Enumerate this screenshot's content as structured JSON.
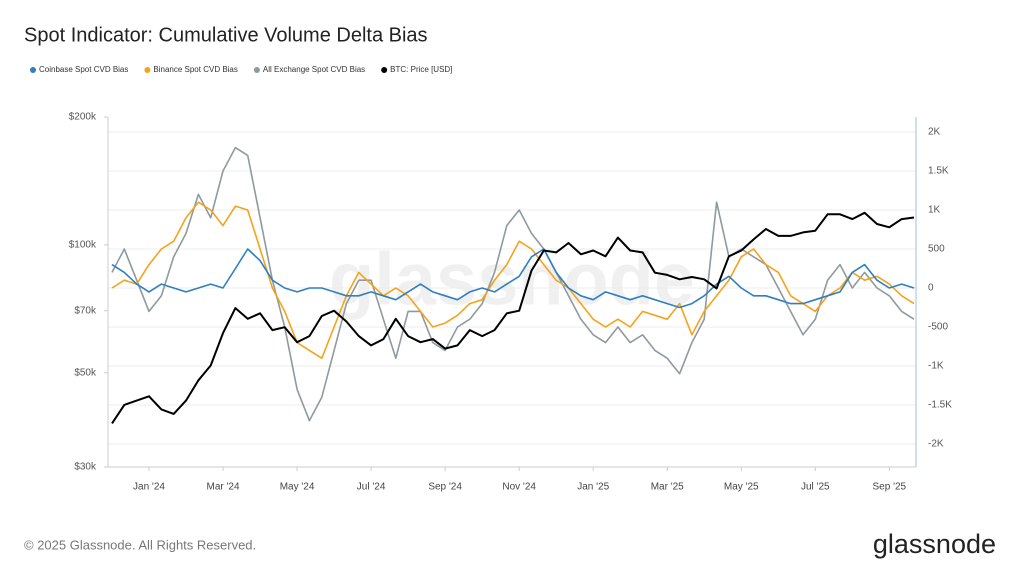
{
  "chart_data": {
    "type": "line",
    "title": "Spot Indicator: Cumulative Volume Delta Bias",
    "watermark": "glassnode",
    "footer": "© 2025 Glassnode. All Rights Reserved.",
    "logo": "glassnode",
    "categories": [
      null,
      null,
      null,
      "Jan '24",
      null,
      null,
      null,
      null,
      null,
      "Mar '24",
      null,
      null,
      null,
      null,
      null,
      "May '24",
      null,
      null,
      null,
      null,
      null,
      "Jul '24",
      null,
      null,
      null,
      null,
      null,
      "Sep '24",
      null,
      null,
      null,
      null,
      null,
      "Nov '24",
      null,
      null,
      null,
      null,
      null,
      "Jan '25",
      null,
      null,
      null,
      null,
      null,
      "Mar '25",
      null,
      null,
      null,
      null,
      null,
      "May '25",
      null,
      null,
      null,
      null,
      null,
      "Jul '25",
      null,
      null,
      null,
      null,
      null,
      "Sep '25",
      null,
      null
    ],
    "ylog": true,
    "ylim": [
      30000,
      200000
    ],
    "yticks": [
      {
        "value": 30000,
        "label": "$30k"
      },
      {
        "value": 50000,
        "label": "$50k"
      },
      {
        "value": 70000,
        "label": "$70k"
      },
      {
        "value": 100000,
        "label": "$100k"
      },
      {
        "value": 200000,
        "label": "$200k"
      }
    ],
    "y2lim": [
      -2295,
      2192
    ],
    "y2ticks": [
      {
        "value": -2000,
        "label": "-2K"
      },
      {
        "value": -1500,
        "label": "-1.5K"
      },
      {
        "value": -1000,
        "label": "-1K"
      },
      -500,
      0,
      500,
      {
        "value": 1000,
        "label": "1K"
      },
      {
        "value": 1500,
        "label": "1.5K"
      },
      {
        "value": 2000,
        "label": "2K"
      }
    ],
    "grid": true,
    "legend": "top-left",
    "series": [
      {
        "name": "Coinbase Spot CVD Bias",
        "color": "#2f7fc1",
        "axis": "y2",
        "values": [
          300,
          200,
          50,
          -50,
          50,
          0,
          -50,
          0,
          50,
          0,
          250,
          500,
          350,
          100,
          0,
          -50,
          0,
          0,
          -50,
          -100,
          -100,
          -50,
          -100,
          -150,
          -50,
          50,
          -50,
          -100,
          -150,
          -50,
          0,
          -50,
          50,
          150,
          400,
          500,
          200,
          0,
          -100,
          -150,
          -50,
          -100,
          -150,
          -100,
          -150,
          -200,
          -250,
          -200,
          -100,
          50,
          150,
          0,
          -100,
          -100,
          -150,
          -200,
          -200,
          -150,
          -100,
          -50,
          200,
          300,
          100,
          0,
          50,
          0
        ]
      },
      {
        "name": "Binance Spot CVD Bias",
        "color": "#f7a21b",
        "axis": "y2",
        "values": [
          0,
          100,
          50,
          300,
          500,
          600,
          900,
          1100,
          1000,
          800,
          1050,
          1000,
          500,
          0,
          -300,
          -700,
          -800,
          -900,
          -500,
          -100,
          200,
          50,
          -100,
          0,
          -100,
          -300,
          -500,
          -450,
          -350,
          -200,
          -150,
          100,
          300,
          600,
          500,
          300,
          100,
          0,
          -200,
          -400,
          -500,
          -400,
          -500,
          -300,
          -350,
          -400,
          -200,
          -600,
          -300,
          -100,
          100,
          400,
          500,
          300,
          200,
          -100,
          -200,
          -300,
          -100,
          0,
          200,
          100,
          150,
          50,
          -100,
          -200
        ]
      },
      {
        "name": "All Exchange Spot CVD Bias",
        "color": "#8f9a9f",
        "axis": "y2",
        "values": [
          200,
          500,
          100,
          -300,
          -100,
          400,
          700,
          1200,
          900,
          1500,
          1800,
          1700,
          900,
          100,
          -500,
          -1300,
          -1700,
          -1400,
          -800,
          -200,
          100,
          100,
          -400,
          -900,
          -300,
          -300,
          -700,
          -800,
          -500,
          -400,
          -200,
          200,
          800,
          1000,
          700,
          500,
          200,
          -100,
          -400,
          -600,
          -700,
          -500,
          -700,
          -600,
          -800,
          -900,
          -1100,
          -700,
          -400,
          1100,
          400,
          500,
          400,
          300,
          0,
          -300,
          -600,
          -400,
          100,
          300,
          0,
          200,
          0,
          -100,
          -300,
          -400
        ]
      },
      {
        "name": "BTC: Price [USD]",
        "color": "#000000",
        "axis": "y",
        "values": [
          38000,
          42000,
          43000,
          44000,
          41000,
          40000,
          43000,
          48000,
          52000,
          62000,
          71000,
          67000,
          69000,
          63000,
          64000,
          59000,
          61000,
          68000,
          70000,
          66000,
          61000,
          58000,
          60000,
          67000,
          61000,
          59000,
          60000,
          57000,
          58000,
          63000,
          61000,
          63000,
          69000,
          70000,
          87000,
          97000,
          96000,
          101000,
          95000,
          97000,
          94000,
          104000,
          97000,
          96000,
          86000,
          85000,
          83000,
          84000,
          83000,
          79000,
          94000,
          97000,
          103000,
          109000,
          105000,
          105000,
          107000,
          108000,
          118000,
          118000,
          115000,
          119000,
          112000,
          110000,
          115000,
          116000
        ]
      }
    ]
  }
}
